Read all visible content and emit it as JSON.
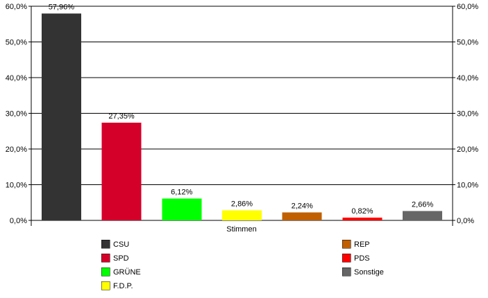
{
  "chart_data": {
    "type": "bar",
    "xlabel": "Stimmen",
    "ylabel": "",
    "ylim": [
      0,
      60
    ],
    "yticks": [
      "0,0%",
      "10,0%",
      "20,0%",
      "30,0%",
      "40,0%",
      "50,0%",
      "60,0%"
    ],
    "ytick_values": [
      0,
      10,
      20,
      30,
      40,
      50,
      60
    ],
    "grid": true,
    "legend_position": "bottom",
    "categories": [
      "CSU",
      "SPD",
      "GRÜNE",
      "F.D.P.",
      "REP",
      "PDS",
      "Sonstige"
    ],
    "values": [
      57.96,
      27.35,
      6.12,
      2.86,
      2.24,
      0.82,
      2.66
    ],
    "data_labels": [
      "57,96%",
      "27,35%",
      "6,12%",
      "2,86%",
      "2,24%",
      "0,82%",
      "2,66%"
    ],
    "colors": [
      "#333333",
      "#d4002a",
      "#00ff00",
      "#ffff00",
      "#c06000",
      "#ff0000",
      "#666666"
    ]
  }
}
